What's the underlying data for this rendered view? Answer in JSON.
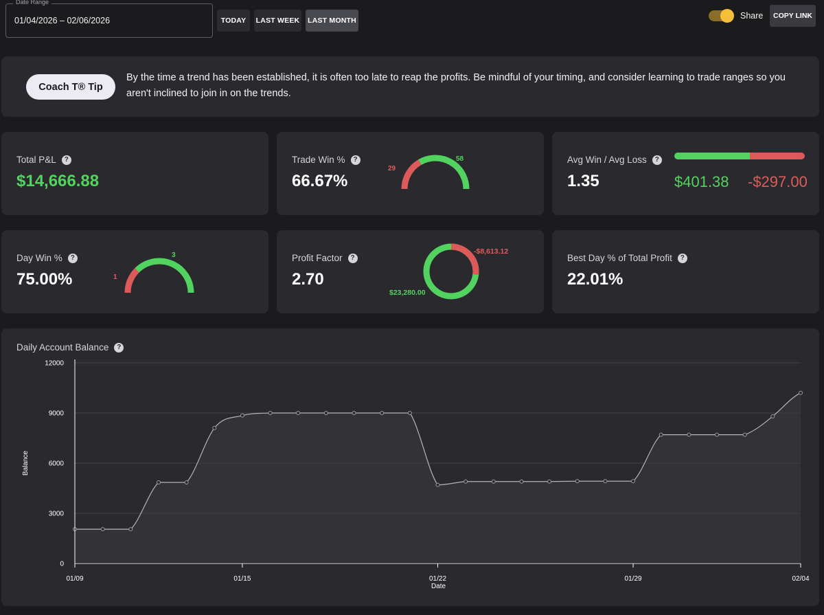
{
  "date_range": {
    "label": "Date Range",
    "value": "01/04/2026 – 02/06/2026"
  },
  "range_buttons": [
    {
      "label": "TODAY",
      "active": false
    },
    {
      "label": "LAST WEEK",
      "active": false
    },
    {
      "label": "LAST MONTH",
      "active": true
    }
  ],
  "share": {
    "label": "Share",
    "enabled": true
  },
  "copy_link": "COPY LINK",
  "tip": {
    "badge": "Coach T® Tip",
    "text": "By the time a trend has been established, it is often too late to reap the profits. Be mindful of your timing, and consider learning to trade ranges so you aren't inclined to join in on the trends."
  },
  "stats": {
    "total_pnl": {
      "label": "Total P&L",
      "value": "$14,666.88"
    },
    "trade_win": {
      "label": "Trade Win %",
      "value": "66.67%",
      "wins": 58,
      "losses": 29
    },
    "avg_win_loss": {
      "label": "Avg Win / Avg Loss",
      "value": "1.35",
      "avg_win": "$401.38",
      "avg_loss": "-$297.00"
    },
    "day_win": {
      "label": "Day Win %",
      "value": "75.00%",
      "wins": 3,
      "losses": 1
    },
    "profit_factor": {
      "label": "Profit Factor",
      "value": "2.70",
      "gross_profit": "$23,280.00",
      "gross_loss": "-$8,613.12",
      "profit_amount": 23280.0,
      "loss_amount": 8613.12
    },
    "best_day": {
      "label": "Best Day % of Total Profit",
      "value": "22.01%"
    }
  },
  "colors": {
    "green": "#52d35f",
    "red": "#dc5a5a",
    "accent": "#f5bf3a"
  },
  "balance_chart": {
    "title": "Daily Account Balance"
  },
  "chart_data": {
    "type": "area",
    "title": "",
    "xlabel": "Date",
    "ylabel": "Balance",
    "ylim": [
      0,
      12000
    ],
    "yticks": [
      0,
      3000,
      6000,
      9000,
      12000
    ],
    "xlim": [
      "01/09",
      "02/04"
    ],
    "xticks": [
      "01/09",
      "01/15",
      "01/22",
      "01/29",
      "02/04"
    ],
    "x": [
      "01/09",
      "01/10",
      "01/11",
      "01/12",
      "01/13",
      "01/14",
      "01/15",
      "01/16",
      "01/17",
      "01/18",
      "01/19",
      "01/20",
      "01/21",
      "01/22",
      "01/23",
      "01/24",
      "01/25",
      "01/26",
      "01/27",
      "01/28",
      "01/29",
      "01/30",
      "01/31",
      "02/01",
      "02/02",
      "02/03",
      "02/04"
    ],
    "series": [
      {
        "values": [
          2050,
          2050,
          2050,
          4850,
          4850,
          8100,
          8850,
          9000,
          9000,
          9000,
          9000,
          9000,
          9000,
          4700,
          4900,
          4900,
          4900,
          4900,
          4920,
          4920,
          4920,
          7700,
          7700,
          7700,
          7700,
          8800,
          10200
        ]
      }
    ],
    "grid": true
  }
}
